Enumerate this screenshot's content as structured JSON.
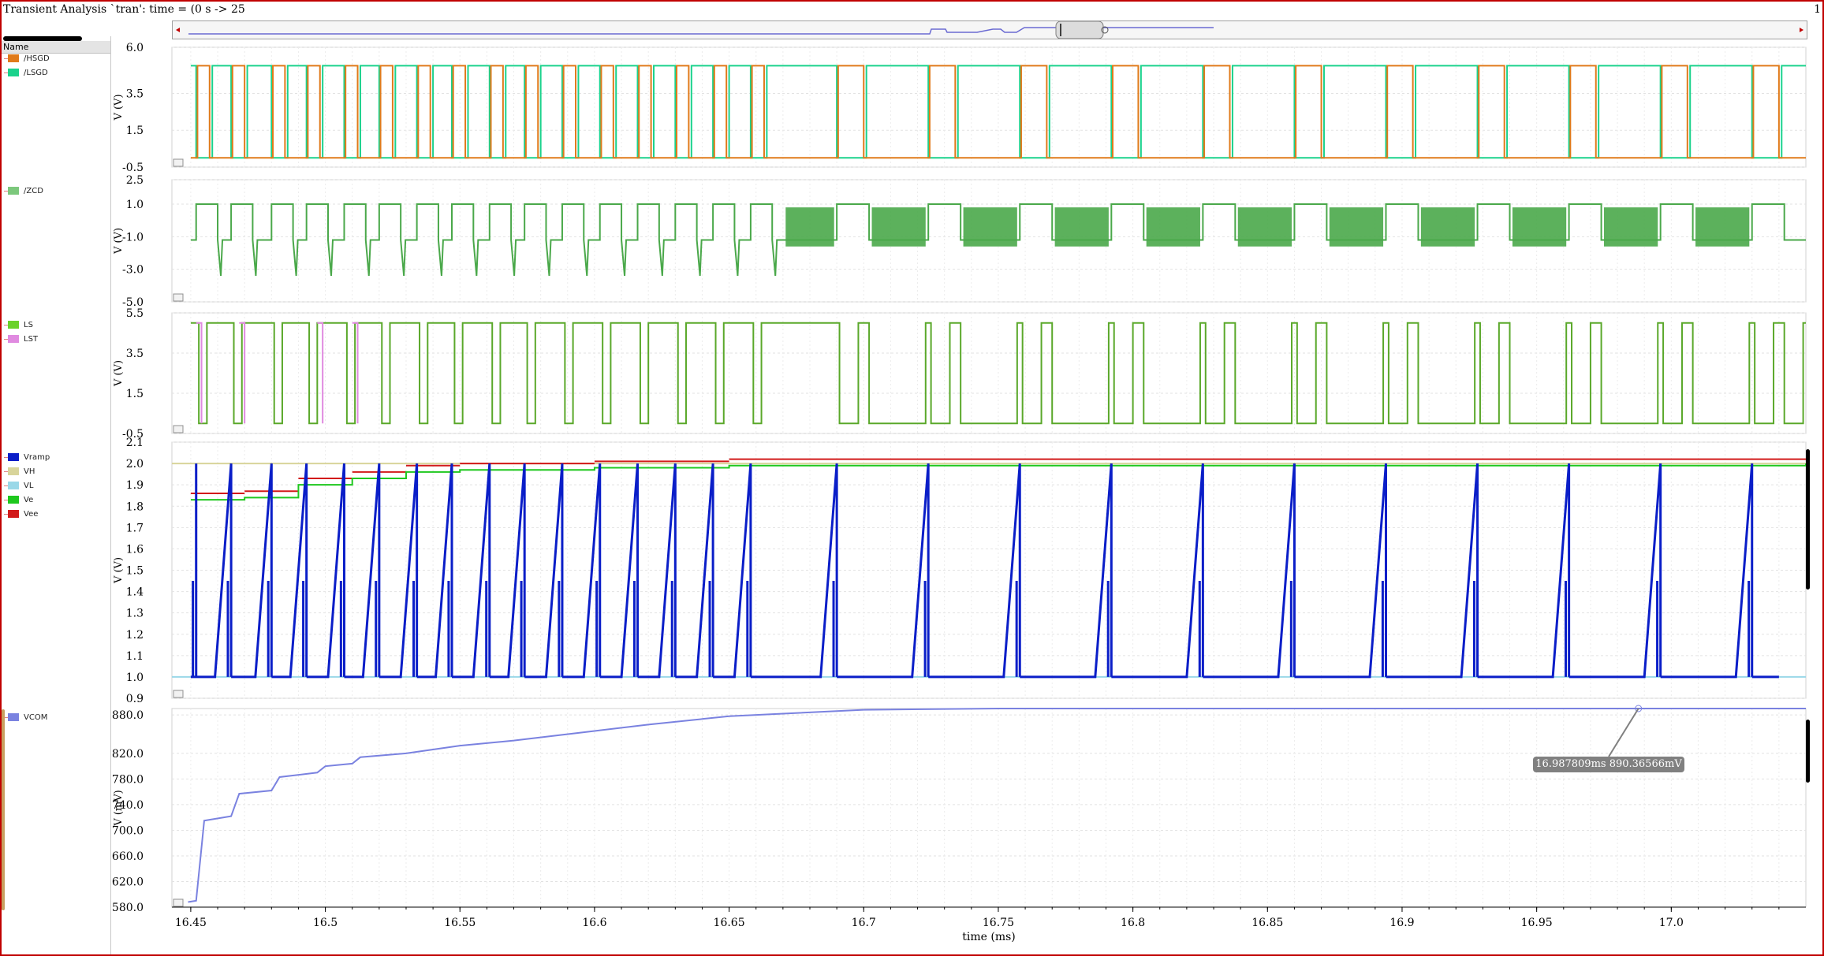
{
  "window": {
    "title": "Transient Analysis `tran': time = (0 s -> 25",
    "page_number": "1"
  },
  "left_panel": {
    "header": "Name",
    "groups": [
      {
        "items": [
          {
            "label": "/HSGD",
            "color": "#e07a1a"
          },
          {
            "label": "/LSGD",
            "color": "#1ad28c"
          }
        ]
      },
      {
        "items": [
          {
            "label": "/ZCD",
            "color": "#7cc87c"
          }
        ]
      },
      {
        "items": [
          {
            "label": "LS",
            "color": "#6ad22a"
          },
          {
            "label": "LST",
            "color": "#e08ae0"
          }
        ]
      },
      {
        "items": [
          {
            "label": "Vramp",
            "color": "#0a1ec8"
          },
          {
            "label": "VH",
            "color": "#d8d49a"
          },
          {
            "label": "VL",
            "color": "#9ad8e8"
          },
          {
            "label": "Ve",
            "color": "#1ec81e"
          },
          {
            "label": "Vee",
            "color": "#d21a1a"
          }
        ]
      },
      {
        "items": [
          {
            "label": "VCOM",
            "color": "#7a82e0"
          }
        ]
      }
    ]
  },
  "panels": [
    {
      "ylabel": "V (V)",
      "ticks": [
        "6.0",
        "3.5",
        "1.5",
        "-0.5"
      ]
    },
    {
      "ylabel": "V (V)",
      "ticks": [
        "2.5",
        "1.0",
        "-1.0",
        "-3.0",
        "-5.0"
      ]
    },
    {
      "ylabel": "V (V)",
      "ticks": [
        "5.5",
        "3.5",
        "1.5",
        "-0.5"
      ]
    },
    {
      "ylabel": "V (V)",
      "ticks": [
        "2.1",
        "2.0",
        "1.9",
        "1.8",
        "1.7",
        "1.6",
        "1.5",
        "1.4",
        "1.3",
        "1.2",
        "1.1",
        "1.0",
        "0.9"
      ]
    },
    {
      "ylabel": "V (mV)",
      "ticks": [
        "880.0",
        "820.0",
        "780.0",
        "740.0",
        "700.0",
        "660.0",
        "620.0",
        "580.0"
      ]
    }
  ],
  "time_axis": {
    "label": "time (ms)",
    "ticks": [
      "16.45",
      "16.5",
      "16.55",
      "16.6",
      "16.65",
      "16.7",
      "16.75",
      "16.8",
      "16.85",
      "16.9",
      "16.95",
      "17.0"
    ]
  },
  "marker": {
    "readout": "16.987809ms 890.36566mV"
  },
  "chart_data": [
    {
      "type": "line",
      "title": "",
      "ylabel": "V (V)",
      "ylim": [
        -0.5,
        6.0
      ],
      "series": [
        {
          "name": "/HSGD",
          "color": "#e07a1a"
        },
        {
          "name": "/LSGD",
          "color": "#1ad28c"
        }
      ],
      "switch_times_ms": [
        16.452,
        16.465,
        16.48,
        16.493,
        16.507,
        16.52,
        16.534,
        16.547,
        16.561,
        16.574,
        16.588,
        16.602,
        16.616,
        16.63,
        16.644,
        16.658,
        16.69,
        16.724,
        16.758,
        16.792,
        16.826,
        16.86,
        16.894,
        16.928,
        16.962,
        16.996,
        17.03
      ],
      "high_level": 5.0,
      "low_level": 0.0,
      "xlim": [
        16.443,
        17.05
      ]
    },
    {
      "type": "line",
      "title": "",
      "ylabel": "V (V)",
      "ylim": [
        -5.0,
        2.5
      ],
      "series": [
        {
          "name": "/ZCD",
          "color": "#4aa84a"
        }
      ],
      "high_level": 1.0,
      "low_level": -1.2
    },
    {
      "type": "line",
      "title": "",
      "ylabel": "V (V)",
      "ylim": [
        -0.5,
        5.5
      ],
      "series": [
        {
          "name": "LS",
          "color": "#5aa82a"
        },
        {
          "name": "LST",
          "color": "#e08ae0"
        }
      ],
      "high_level": 5.0,
      "low_level": 0.0
    },
    {
      "type": "line",
      "title": "",
      "ylabel": "V (V)",
      "ylim": [
        0.9,
        2.1
      ],
      "series": [
        {
          "name": "Vramp",
          "color": "#0a1ec8"
        },
        {
          "name": "VH",
          "color": "#d8d49a"
        },
        {
          "name": "VL",
          "color": "#9ad8e8"
        },
        {
          "name": "Ve",
          "color": "#1ec81e"
        },
        {
          "name": "Vee",
          "color": "#d21a1a"
        }
      ],
      "Vramp_range": [
        1.0,
        2.0
      ],
      "VH": 2.0,
      "VL": 1.0,
      "Ve_points": [
        [
          16.45,
          1.83
        ],
        [
          16.47,
          1.84
        ],
        [
          16.49,
          1.9
        ],
        [
          16.51,
          1.93
        ],
        [
          16.53,
          1.96
        ],
        [
          16.55,
          1.97
        ],
        [
          16.6,
          1.98
        ],
        [
          16.65,
          1.99
        ],
        [
          17.05,
          2.0
        ]
      ]
    },
    {
      "type": "line",
      "title": "",
      "ylabel": "V (mV)",
      "ylim": [
        580.0,
        890.0
      ],
      "series": [
        {
          "name": "VCOM",
          "color": "#7a82e0"
        }
      ],
      "points": [
        [
          16.449,
          588
        ],
        [
          16.452,
          590
        ],
        [
          16.455,
          715
        ],
        [
          16.465,
          722
        ],
        [
          16.468,
          757
        ],
        [
          16.48,
          762
        ],
        [
          16.483,
          783
        ],
        [
          16.497,
          790
        ],
        [
          16.5,
          800
        ],
        [
          16.51,
          804
        ],
        [
          16.513,
          814
        ],
        [
          16.53,
          820
        ],
        [
          16.55,
          832
        ],
        [
          16.57,
          840
        ],
        [
          16.6,
          855
        ],
        [
          16.62,
          865
        ],
        [
          16.65,
          878
        ],
        [
          16.7,
          888
        ],
        [
          16.75,
          890
        ],
        [
          17.05,
          890
        ]
      ]
    }
  ]
}
